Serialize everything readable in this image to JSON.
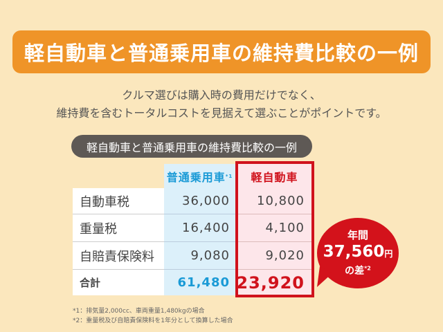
{
  "banner_title": "軽自動車と普通乗用車の維持費比較の一例",
  "lead": [
    "クルマ選びは購入時の費用だけでなく、",
    "維持費を含むトータルコストを見据えて選ぶことがポイントです。"
  ],
  "table": {
    "caption": "軽自動車と普通乗用車の維持費比較の一例",
    "headers": [
      "普通乗用車",
      "軽自動車"
    ],
    "header_note": "*1",
    "rows": [
      {
        "label": "自動車税",
        "regular": "36,000",
        "kei": "10,800"
      },
      {
        "label": "重量税",
        "regular": "16,400",
        "kei": "4,100"
      },
      {
        "label": "自賠責保険料",
        "regular": "9,080",
        "kei": "9,020"
      },
      {
        "label": "合計",
        "regular": "61,480",
        "kei": "23,920"
      }
    ]
  },
  "bubble": {
    "line1": "年間",
    "amount": "37,560",
    "unit": "円",
    "line3": "の差",
    "note": "*2"
  },
  "notes": [
    "*1：排気量2,000cc、車両重量1,480kgの場合",
    "*2：重量税及び自賠責保険料を1年分として換算した場合"
  ],
  "colors": {
    "banner": "#ef9428",
    "accent_red": "#d0121c",
    "accent_blue": "#1a9ad6"
  }
}
